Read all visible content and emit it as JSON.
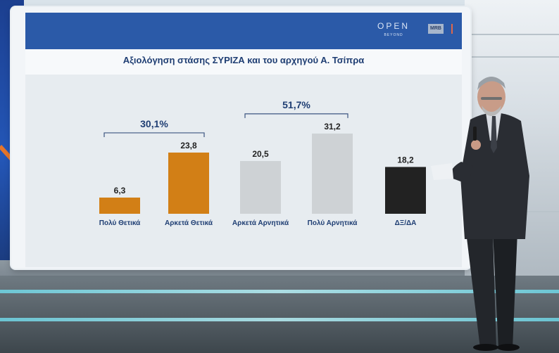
{
  "screen": {
    "logo_text": "OPEN",
    "logo_sub": "BEYOND",
    "badge": "MRB"
  },
  "chart_data": {
    "type": "bar",
    "title": "Αξιολόγηση στάσης ΣΥΡΙΖΑ και του αρχηγού Α. Τσίπρα",
    "categories": [
      "Πολύ Θετικά",
      "Αρκετά Θετικά",
      "Αρκετά Αρνητικά",
      "Πολύ Αρνητικά",
      "ΔΞ/ΔΑ"
    ],
    "values": [
      6.3,
      23.8,
      20.5,
      31.2,
      18.2
    ],
    "value_labels": [
      "6,3",
      "23,8",
      "20,5",
      "31,2",
      "18,2"
    ],
    "colors": [
      "#d27f16",
      "#d27f16",
      "#ced2d5",
      "#ced2d5",
      "#222222"
    ],
    "groups": [
      {
        "label": "30,1%",
        "from": 0,
        "to": 1
      },
      {
        "label": "51,7%",
        "from": 2,
        "to": 3
      }
    ],
    "ylim": [
      0,
      35
    ],
    "grid": false,
    "xlabel": "",
    "ylabel": ""
  }
}
